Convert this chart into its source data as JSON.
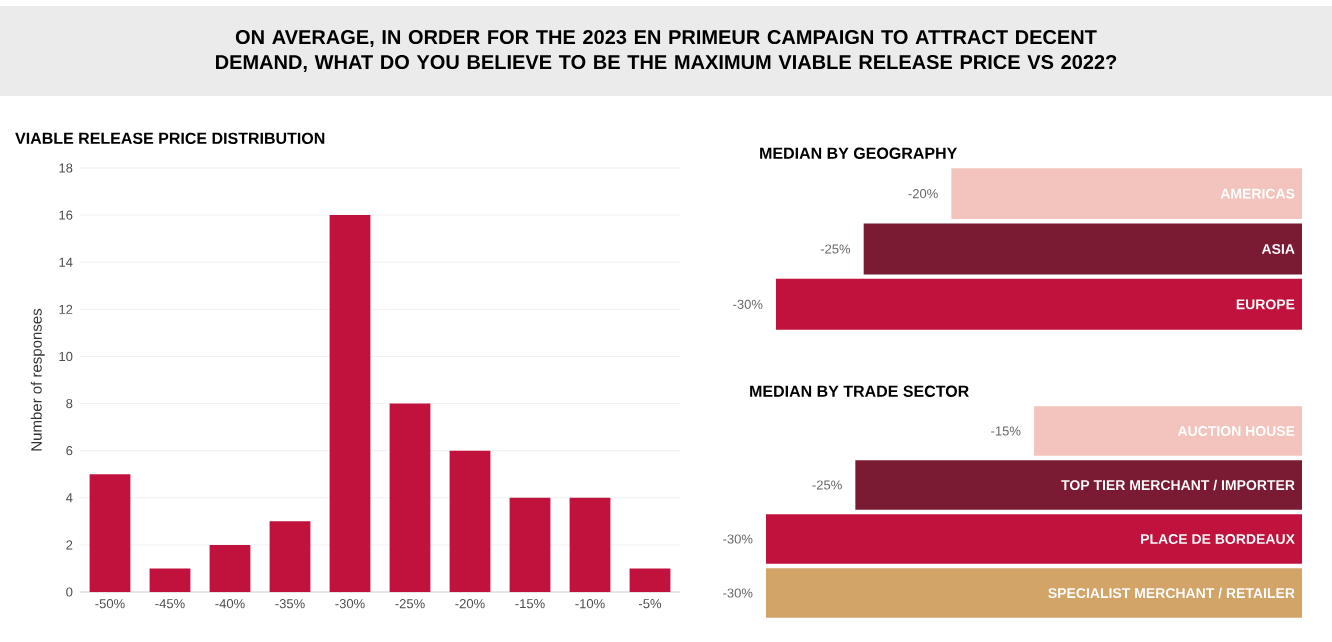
{
  "chart_data": [
    {
      "type": "bar",
      "title": "ON AVERAGE, IN ORDER FOR THE 2023 EN PRIMEUR CAMPAIGN TO ATTRACT DECENT DEMAND, WHAT DO YOU BELIEVE TO BE THE MAXIMUM VIABLE RELEASE PRICE VS 2022?",
      "subtitle": "VIABLE RELEASE PRICE DISTRIBUTION",
      "ylabel": "Number of responses",
      "categories": [
        "-50%",
        "-45%",
        "-40%",
        "-35%",
        "-30%",
        "-25%",
        "-20%",
        "-15%",
        "-10%",
        "-5%"
      ],
      "values": [
        5,
        1,
        2,
        3,
        16,
        8,
        6,
        4,
        4,
        1
      ],
      "color": "#c0123c",
      "ylim": [
        0,
        18
      ],
      "yticks": [
        0,
        2,
        4,
        6,
        8,
        10,
        12,
        14,
        16,
        18
      ],
      "grid": "y"
    },
    {
      "type": "bar",
      "orientation": "horizontal",
      "title": "MEDIAN BY GEOGRAPHY",
      "categories": [
        "AMERICAS",
        "ASIA",
        "EUROPE"
      ],
      "values": [
        -20,
        -25,
        -30
      ],
      "value_labels": [
        "-20%",
        "-25%",
        "-30%"
      ],
      "colors": [
        "#f2c4bd",
        "#7b1a33",
        "#c0123c"
      ]
    },
    {
      "type": "bar",
      "orientation": "horizontal",
      "title": "MEDIAN BY TRADE SECTOR",
      "categories": [
        "AUCTION HOUSE",
        "TOP TIER MERCHANT / IMPORTER",
        "PLACE DE BORDEAUX",
        "SPECIALIST MERCHANT / RETAILER"
      ],
      "values": [
        -15,
        -25,
        -30,
        -30
      ],
      "value_labels": [
        "-15%",
        "-25%",
        "-30%",
        "-30%"
      ],
      "colors": [
        "#f2c4bd",
        "#7b1a33",
        "#c0123c",
        "#d2a468"
      ]
    }
  ]
}
